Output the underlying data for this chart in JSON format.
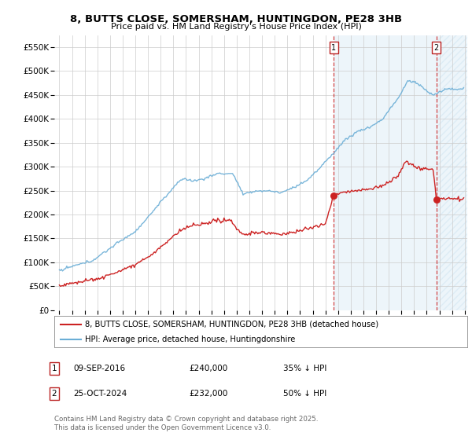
{
  "title": "8, BUTTS CLOSE, SOMERSHAM, HUNTINGDON, PE28 3HB",
  "subtitle": "Price paid vs. HM Land Registry's House Price Index (HPI)",
  "ylim": [
    0,
    575000
  ],
  "yticks": [
    0,
    50000,
    100000,
    150000,
    200000,
    250000,
    300000,
    350000,
    400000,
    450000,
    500000,
    550000
  ],
  "ytick_labels": [
    "£0",
    "£50K",
    "£100K",
    "£150K",
    "£200K",
    "£250K",
    "£300K",
    "£350K",
    "£400K",
    "£450K",
    "£500K",
    "£550K"
  ],
  "hpi_color": "#6baed6",
  "price_color": "#cc2222",
  "background_color": "#ffffff",
  "plot_bg_color": "#ffffff",
  "grid_color": "#cccccc",
  "marker1_date": "09-SEP-2016",
  "marker1_price_str": "£240,000",
  "marker1_price": 240000,
  "marker1_pct": "35% ↓ HPI",
  "marker2_date": "25-OCT-2024",
  "marker2_price_str": "£232,000",
  "marker2_price": 232000,
  "marker2_pct": "50% ↓ HPI",
  "legend_property": "8, BUTTS CLOSE, SOMERSHAM, HUNTINGDON, PE28 3HB (detached house)",
  "legend_hpi": "HPI: Average price, detached house, Huntingdonshire",
  "footnote": "Contains HM Land Registry data © Crown copyright and database right 2025.\nThis data is licensed under the Open Government Licence v3.0.",
  "xstart_year": 1995,
  "xend_year": 2027
}
